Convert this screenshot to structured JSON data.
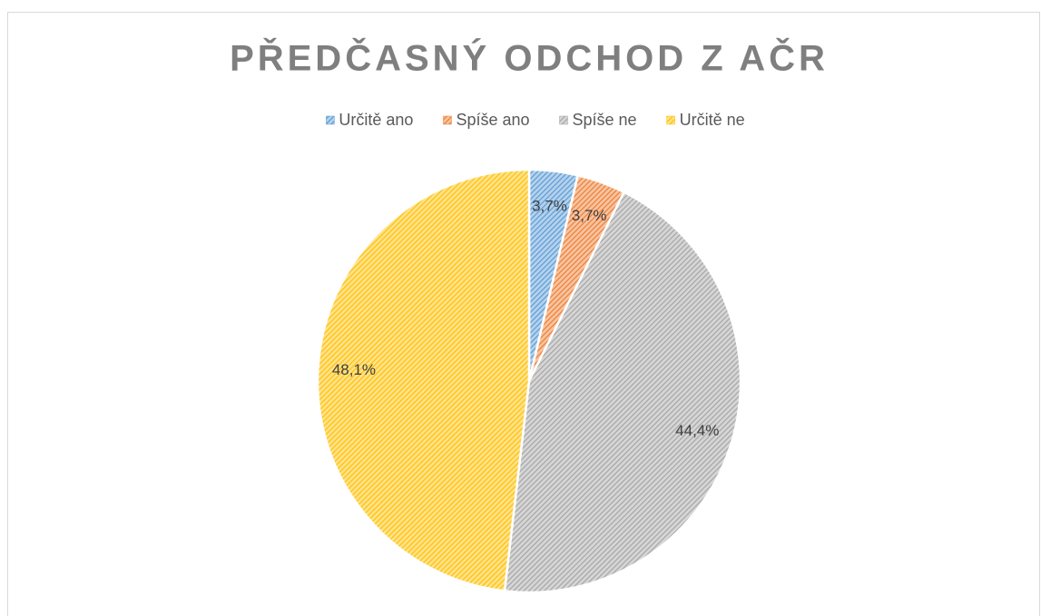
{
  "chart_data": {
    "type": "pie",
    "title": "PŘEDČASNÝ ODCHOD Z AČR",
    "categories": [
      "Určitě ano",
      "Spíše ano",
      "Spíše ne",
      "Určitě ne"
    ],
    "values": [
      3.7,
      3.7,
      44.4,
      48.1
    ],
    "value_labels": [
      "3,7%",
      "3,7%",
      "44,4%",
      "48,1%"
    ],
    "colors": [
      "#5b9bd5",
      "#ed7d31",
      "#a5a5a5",
      "#ffc000"
    ],
    "legend": "top"
  }
}
